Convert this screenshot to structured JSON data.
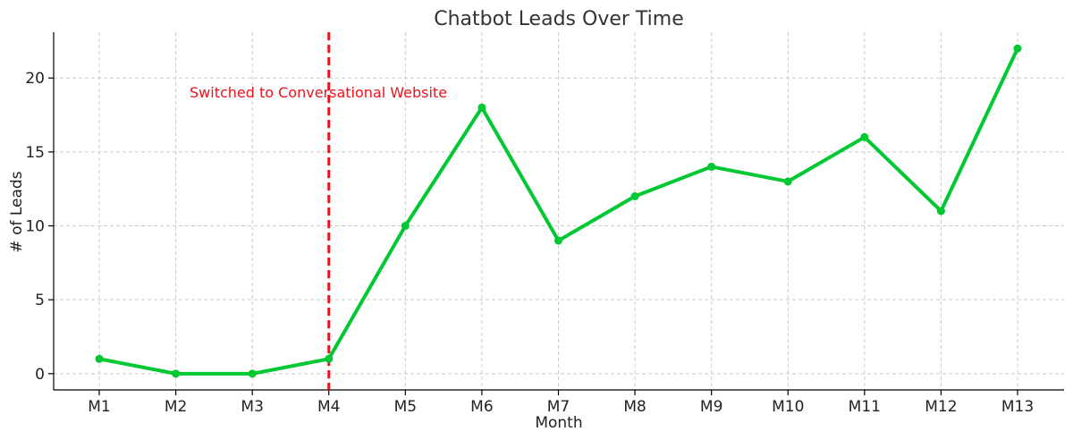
{
  "chart_data": {
    "type": "line",
    "title": "Chatbot Leads Over Time",
    "xlabel": "Month",
    "ylabel": "# of Leads",
    "categories": [
      "M1",
      "M2",
      "M3",
      "M4",
      "M5",
      "M6",
      "M7",
      "M8",
      "M9",
      "M10",
      "M11",
      "M12",
      "M13"
    ],
    "series": [
      {
        "values": [
          1,
          0,
          0,
          1,
          10,
          18,
          9,
          12,
          14,
          13,
          16,
          11,
          22
        ],
        "color": "#00c832"
      }
    ],
    "yticks": [
      0,
      5,
      10,
      15,
      20
    ],
    "ylim": [
      -1.1,
      23.1
    ],
    "grid": true,
    "vline": {
      "category": "M4",
      "color": "#e8141e",
      "style": "dashed"
    },
    "annotation": {
      "text": "Switched to Conversational Website",
      "color": "#e8141e"
    }
  }
}
